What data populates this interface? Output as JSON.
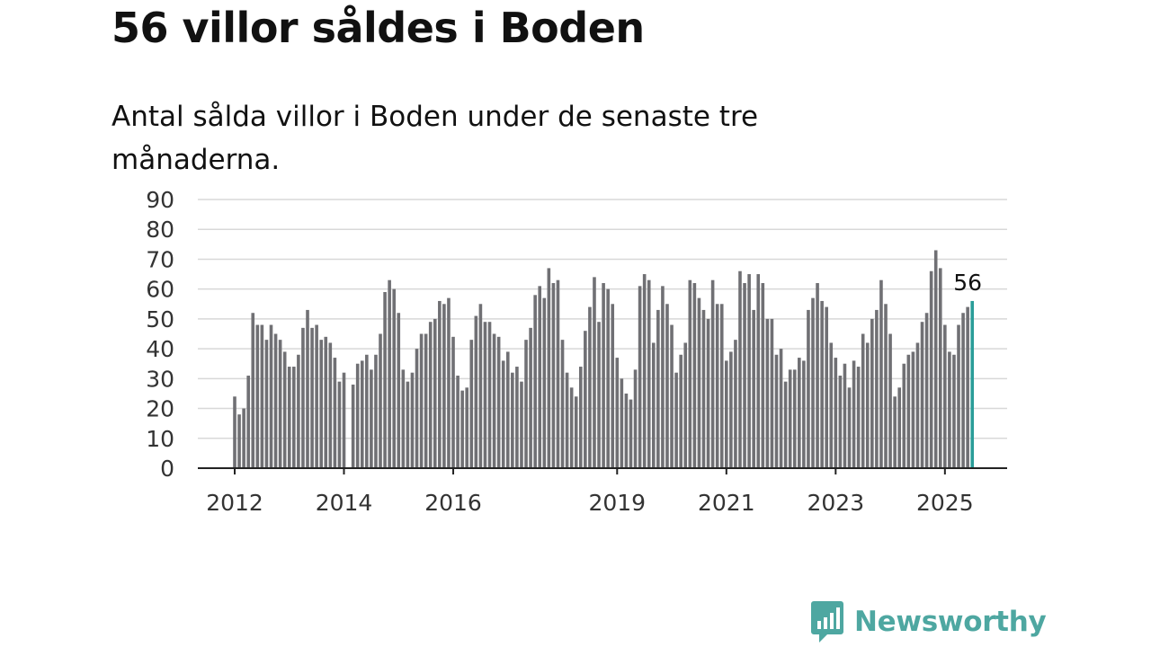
{
  "header": {
    "title": "56 villor såldes i Boden",
    "subtitle": "Antal sålda villor i Boden under de senaste tre månaderna."
  },
  "brand": {
    "name": "Newsworthy",
    "icon": "newsworthy-logo-icon",
    "color": "#4ea7a1"
  },
  "colors": {
    "bar": "#707074",
    "highlight": "#2a9d99",
    "grid": "#d8d8d8",
    "axis": "#222222"
  },
  "chart_data": {
    "type": "bar",
    "title": "56 villor såldes i Boden",
    "subtitle": "Antal sålda villor i Boden under de senaste tre månaderna.",
    "xlabel": "",
    "ylabel": "",
    "ylim": [
      0,
      90
    ],
    "yticks": [
      0,
      10,
      20,
      30,
      40,
      50,
      60,
      70,
      80,
      90
    ],
    "grid": true,
    "x_start": "2012-01",
    "x_end": "2025-06",
    "xticks": [
      "2012",
      "2014",
      "2016",
      "2019",
      "2021",
      "2023",
      "2025"
    ],
    "series": [
      {
        "values": [
          24,
          18,
          20,
          31,
          52,
          48,
          48,
          43,
          48,
          45,
          43,
          39,
          34,
          34,
          38,
          47,
          53,
          47,
          48,
          43,
          44,
          42,
          37,
          29,
          32,
          null,
          28,
          35,
          36,
          38,
          33,
          38,
          45,
          59,
          63,
          60,
          52,
          33,
          29,
          32,
          40,
          45,
          45,
          49,
          50,
          56,
          55,
          57,
          44,
          31,
          26,
          27,
          43,
          51,
          55,
          49,
          49,
          45,
          44,
          36,
          39,
          32,
          34,
          29,
          43,
          47,
          58,
          61,
          57,
          67,
          62,
          63,
          43,
          32,
          27,
          24,
          34,
          46,
          54,
          64,
          49,
          62,
          60,
          55,
          37,
          30,
          25,
          23,
          33,
          61,
          65,
          63,
          42,
          53,
          61,
          55,
          48,
          32,
          38,
          42,
          63,
          62,
          57,
          53,
          50,
          63,
          55,
          55,
          36,
          39,
          43,
          66,
          62,
          65,
          53,
          65,
          62,
          50,
          50,
          38,
          40,
          29,
          33,
          33,
          37,
          36,
          53,
          57,
          62,
          56,
          54,
          42,
          37,
          31,
          35,
          27,
          36,
          34,
          45,
          42,
          50,
          53,
          63,
          55,
          45,
          24,
          27,
          35,
          38,
          39,
          42,
          49,
          52,
          66,
          73,
          67,
          48,
          39,
          38,
          48,
          52,
          54,
          56
        ]
      }
    ],
    "annotations": [
      {
        "label": "56",
        "value": 56,
        "period": "2025-06"
      }
    ]
  }
}
